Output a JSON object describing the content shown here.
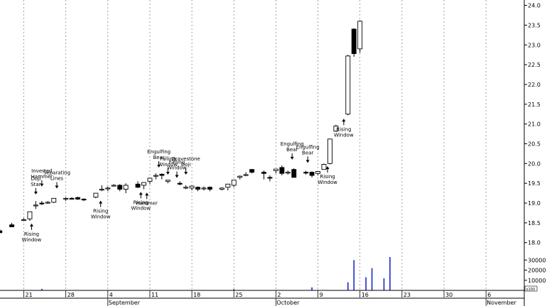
{
  "chart_data": {
    "type": "candlestick",
    "title": "",
    "xlabel": "",
    "ylabel": "",
    "ylim": [
      17.6,
      24.1
    ],
    "y_ticks": [
      "18.0",
      "18.5",
      "19.0",
      "19.5",
      "20.0",
      "20.5",
      "21.0",
      "21.5",
      "22.0",
      "22.5",
      "23.0",
      "23.5",
      "24.0"
    ],
    "y_tick_values": [
      18.0,
      18.5,
      19.0,
      19.5,
      20.0,
      20.5,
      21.0,
      21.5,
      22.0,
      22.5,
      23.0,
      23.5,
      24.0
    ],
    "volume_ticks": [
      "10000",
      "20000",
      "30000"
    ],
    "volume_tick_values": [
      10000,
      20000,
      30000
    ],
    "volume_scale_label": "x100",
    "x_ticks": [
      {
        "label": "21",
        "day": 0
      },
      {
        "label": "28",
        "day": 7
      },
      {
        "label": "4",
        "day": 14
      },
      {
        "label": "11",
        "day": 21
      },
      {
        "label": "18",
        "day": 28
      },
      {
        "label": "25",
        "day": 35
      },
      {
        "label": "2",
        "day": 42
      },
      {
        "label": "9",
        "day": 49
      },
      {
        "label": "16",
        "day": 56
      },
      {
        "label": "23",
        "day": 63
      },
      {
        "label": "30",
        "day": 70
      },
      {
        "label": "6",
        "day": 77
      }
    ],
    "months": [
      {
        "label": "September",
        "day": 14
      },
      {
        "label": "October",
        "day": 42
      },
      {
        "label": "November",
        "day": 77
      }
    ],
    "grid": true,
    "candles": [
      {
        "d": -4,
        "o": 18.3,
        "h": 18.35,
        "l": 18.25,
        "c": 18.25
      },
      {
        "d": -2,
        "o": 18.45,
        "h": 18.5,
        "l": 18.4,
        "c": 18.4
      },
      {
        "d": 0,
        "o": 18.58,
        "h": 18.62,
        "l": 18.55,
        "c": 18.58
      },
      {
        "d": 1,
        "o": 18.6,
        "h": 18.78,
        "l": 18.55,
        "c": 18.78
      },
      {
        "d": 2,
        "o": 18.95,
        "h": 19.05,
        "l": 18.85,
        "c": 18.95
      },
      {
        "d": 3,
        "o": 19.0,
        "h": 19.05,
        "l": 18.95,
        "c": 18.98
      },
      {
        "d": 4,
        "o": 19.0,
        "h": 19.05,
        "l": 18.98,
        "c": 19.02
      },
      {
        "d": 5,
        "o": 19.02,
        "h": 19.12,
        "l": 19.0,
        "c": 19.12
      },
      {
        "d": 7,
        "o": 19.12,
        "h": 19.15,
        "l": 19.05,
        "c": 19.12
      },
      {
        "d": 8,
        "o": 19.12,
        "h": 19.15,
        "l": 19.1,
        "c": 19.1
      },
      {
        "d": 9,
        "o": 19.14,
        "h": 19.16,
        "l": 19.08,
        "c": 19.1
      },
      {
        "d": 10,
        "o": 19.1,
        "h": 19.12,
        "l": 19.05,
        "c": 19.08
      },
      {
        "d": 12,
        "o": 19.15,
        "h": 19.25,
        "l": 19.12,
        "c": 19.25
      },
      {
        "d": 13,
        "o": 19.35,
        "h": 19.45,
        "l": 19.3,
        "c": 19.35
      },
      {
        "d": 14,
        "o": 19.38,
        "h": 19.42,
        "l": 19.3,
        "c": 19.38
      },
      {
        "d": 15,
        "o": 19.45,
        "h": 19.48,
        "l": 19.42,
        "c": 19.45
      },
      {
        "d": 16,
        "o": 19.45,
        "h": 19.48,
        "l": 19.3,
        "c": 19.35
      },
      {
        "d": 17,
        "o": 19.35,
        "h": 19.5,
        "l": 19.25,
        "c": 19.45
      },
      {
        "d": 19,
        "o": 19.48,
        "h": 19.55,
        "l": 19.38,
        "c": 19.4
      },
      {
        "d": 20,
        "o": 19.45,
        "h": 19.5,
        "l": 19.35,
        "c": 19.52
      },
      {
        "d": 21,
        "o": 19.55,
        "h": 19.63,
        "l": 19.48,
        "c": 19.63
      },
      {
        "d": 22,
        "o": 19.7,
        "h": 19.75,
        "l": 19.6,
        "c": 19.7
      },
      {
        "d": 23,
        "o": 19.73,
        "h": 19.75,
        "l": 19.6,
        "c": 19.7
      },
      {
        "d": 24,
        "o": 19.55,
        "h": 19.58,
        "l": 19.5,
        "c": 19.58
      },
      {
        "d": 26,
        "o": 19.5,
        "h": 19.55,
        "l": 19.45,
        "c": 19.48
      },
      {
        "d": 27,
        "o": 19.4,
        "h": 19.45,
        "l": 19.35,
        "c": 19.4
      },
      {
        "d": 28,
        "o": 19.38,
        "h": 19.45,
        "l": 19.32,
        "c": 19.43
      },
      {
        "d": 29,
        "o": 19.4,
        "h": 19.42,
        "l": 19.3,
        "c": 19.35
      },
      {
        "d": 30,
        "o": 19.38,
        "h": 19.42,
        "l": 19.32,
        "c": 19.38
      },
      {
        "d": 31,
        "o": 19.4,
        "h": 19.42,
        "l": 19.3,
        "c": 19.35
      },
      {
        "d": 33,
        "o": 19.35,
        "h": 19.4,
        "l": 19.32,
        "c": 19.38
      },
      {
        "d": 34,
        "o": 19.4,
        "h": 19.45,
        "l": 19.32,
        "c": 19.48
      },
      {
        "d": 35,
        "o": 19.45,
        "h": 19.58,
        "l": 19.4,
        "c": 19.58
      },
      {
        "d": 36,
        "o": 19.65,
        "h": 19.7,
        "l": 19.6,
        "c": 19.68
      },
      {
        "d": 37,
        "o": 19.72,
        "h": 19.78,
        "l": 19.68,
        "c": 19.72
      },
      {
        "d": 38,
        "o": 19.85,
        "h": 19.86,
        "l": 19.75,
        "c": 19.78
      },
      {
        "d": 40,
        "o": 19.78,
        "h": 19.82,
        "l": 19.6,
        "c": 19.75
      },
      {
        "d": 41,
        "o": 19.65,
        "h": 19.7,
        "l": 19.55,
        "c": 19.63
      },
      {
        "d": 42,
        "o": 19.82,
        "h": 19.86,
        "l": 19.75,
        "c": 19.86
      },
      {
        "d": 43,
        "o": 19.9,
        "h": 19.95,
        "l": 19.7,
        "c": 19.75
      },
      {
        "d": 44,
        "o": 19.78,
        "h": 19.82,
        "l": 19.72,
        "c": 19.78
      },
      {
        "d": 45,
        "o": 19.85,
        "h": 19.88,
        "l": 19.65,
        "c": 19.65
      },
      {
        "d": 47,
        "o": 19.78,
        "h": 19.82,
        "l": 19.72,
        "c": 19.76
      },
      {
        "d": 48,
        "o": 19.78,
        "h": 19.8,
        "l": 19.65,
        "c": 19.7
      },
      {
        "d": 49,
        "o": 19.75,
        "h": 19.8,
        "l": 19.7,
        "c": 19.8
      },
      {
        "d": 50,
        "o": 19.85,
        "h": 20.0,
        "l": 19.85,
        "c": 19.98
      },
      {
        "d": 51,
        "o": 20.0,
        "h": 20.62,
        "l": 19.98,
        "c": 20.62
      },
      {
        "d": 52,
        "o": 20.82,
        "h": 20.98,
        "l": 20.8,
        "c": 20.95
      },
      {
        "d": 54,
        "o": 21.25,
        "h": 22.75,
        "l": 21.22,
        "c": 22.72
      },
      {
        "d": 55,
        "o": 23.4,
        "h": 23.42,
        "l": 22.7,
        "c": 22.78
      },
      {
        "d": 56,
        "o": 22.9,
        "h": 23.62,
        "l": 22.8,
        "c": 23.6
      }
    ],
    "volume": [
      {
        "d": 3,
        "v": 1500
      },
      {
        "d": 35,
        "v": 1200
      },
      {
        "d": 48,
        "v": 3000
      },
      {
        "d": 54,
        "v": 8000
      },
      {
        "d": 55,
        "v": 30000
      },
      {
        "d": 57,
        "v": 13000
      },
      {
        "d": 58,
        "v": 22000
      },
      {
        "d": 60,
        "v": 12000
      },
      {
        "d": 61,
        "v": 33000
      }
    ],
    "annotations": [
      {
        "lines": [
          "Doji",
          "Star"
        ],
        "d": 2,
        "y": 19.2,
        "dir": "down"
      },
      {
        "lines": [
          "Inverted",
          "Hammer"
        ],
        "d": 3,
        "y": 19.4,
        "dir": "down"
      },
      {
        "lines": [
          "Rising",
          "Window"
        ],
        "d": 1.3,
        "y": 18.5,
        "dir": "up"
      },
      {
        "lines": [
          "Separating",
          "Lines"
        ],
        "d": 5.5,
        "y": 19.35,
        "dir": "down"
      },
      {
        "lines": [
          "Rising",
          "Window"
        ],
        "d": 12.8,
        "y": 19.08,
        "dir": "up"
      },
      {
        "lines": [
          "Rising",
          "Window"
        ],
        "d": 19.5,
        "y": 19.3,
        "dir": "up"
      },
      {
        "lines": [
          "Hammer"
        ],
        "d": 20.5,
        "y": 19.28,
        "dir": "up"
      },
      {
        "lines": [
          "Engulfing",
          "Bear"
        ],
        "d": 22.5,
        "y": 19.88,
        "dir": "down"
      },
      {
        "lines": [
          "Falling",
          "Window"
        ],
        "d": 24.0,
        "y": 19.7,
        "dir": "down"
      },
      {
        "lines": [
          "Falling",
          "Window"
        ],
        "d": 25.5,
        "y": 19.62,
        "dir": "down"
      },
      {
        "lines": [
          "Gravestone",
          "Doji"
        ],
        "d": 27.0,
        "y": 19.7,
        "dir": "down"
      },
      {
        "lines": [
          "Engulfing",
          "Bear"
        ],
        "d": 44.7,
        "y": 20.08,
        "dir": "down"
      },
      {
        "lines": [
          "Engulfing",
          "Bear"
        ],
        "d": 47.3,
        "y": 20.0,
        "dir": "down"
      },
      {
        "lines": [
          "Rising",
          "Window"
        ],
        "d": 50.6,
        "y": 19.95,
        "dir": "up"
      },
      {
        "lines": [
          "Rising",
          "Window"
        ],
        "d": 53.3,
        "y": 21.15,
        "dir": "up"
      }
    ]
  }
}
